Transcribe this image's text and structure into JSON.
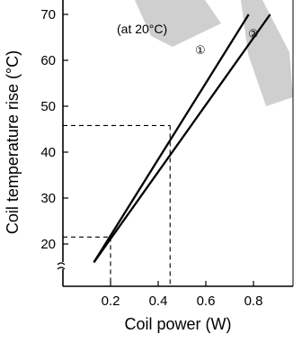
{
  "chart_data": {
    "type": "line",
    "xlabel": "Coil power (W)",
    "ylabel": "Coil temperature rise (°C)",
    "x_ticks": [
      0.2,
      0.4,
      0.6,
      0.8
    ],
    "x_tick_labels": [
      "0.2",
      "0.4",
      "0.6",
      "0.8"
    ],
    "y_ticks": [
      20,
      30,
      40,
      50,
      60,
      70
    ],
    "y_tick_labels": [
      "20",
      "30",
      "40",
      "50",
      "60",
      "70"
    ],
    "xlim": [
      0,
      1.0
    ],
    "ylim": [
      12,
      72
    ],
    "y_axis_break": true,
    "grid": false,
    "annotation": "(at 20°C)",
    "series": [
      {
        "name": "①",
        "points": [
          [
            0.13,
            16
          ],
          [
            0.78,
            70
          ]
        ]
      },
      {
        "name": "②",
        "points": [
          [
            0.13,
            16
          ],
          [
            0.87,
            70
          ]
        ]
      }
    ],
    "reference_lines": [
      {
        "x": 0.2,
        "y": 21.5
      },
      {
        "x": 0.45,
        "y": 45.8
      }
    ],
    "watermark_color": "#cfcfcf"
  }
}
